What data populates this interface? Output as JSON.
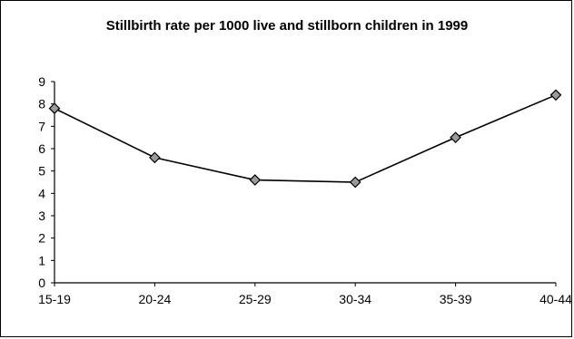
{
  "chart_data": {
    "type": "line",
    "title": "Stillbirth rate per 1000 live and stillborn children in 1999",
    "xlabel": "",
    "ylabel": "",
    "categories": [
      "15-19",
      "20-24",
      "25-29",
      "30-34",
      "35-39",
      "40-44"
    ],
    "series": [
      {
        "values": [
          7.8,
          5.6,
          4.6,
          4.5,
          6.5,
          8.4
        ]
      }
    ],
    "ylim": [
      0,
      9
    ],
    "yticks": [
      "0",
      "1",
      "2",
      "3",
      "4",
      "5",
      "6",
      "7",
      "8",
      "9"
    ],
    "grid": false,
    "legend": "none",
    "marker": "diamond",
    "line_color": "#000000",
    "marker_fill": "#9a9a9a"
  }
}
